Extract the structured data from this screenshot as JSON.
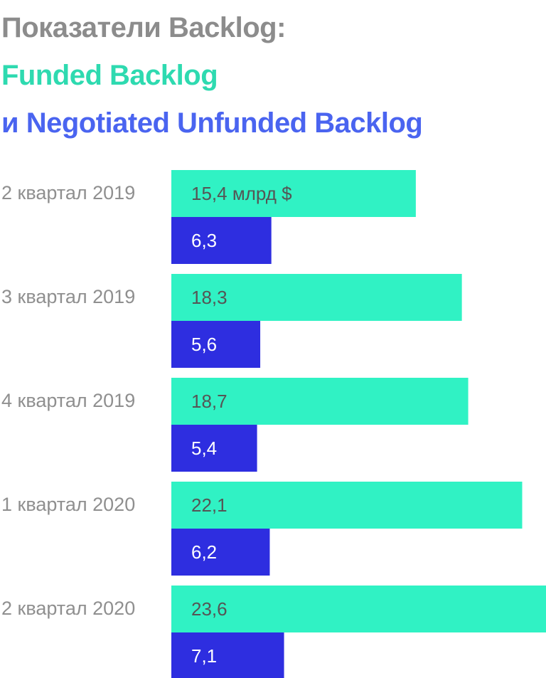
{
  "header": {
    "title_line1": "Показатели Backlog:",
    "title_line2": "Funded Backlog",
    "title_line3": "и Negotiated Unfunded Backlog"
  },
  "colors": {
    "title_gray": "#8c8c8c",
    "funded": "#30f2c4",
    "funded_title": "#2edab0",
    "unfunded": "#2e2ee0",
    "unfunded_title": "#4a64f0",
    "funded_label_text": "#555555",
    "unfunded_label_text": "#ffffff",
    "category_text": "#8f8f8f"
  },
  "chart_data": {
    "type": "bar",
    "orientation": "horizontal",
    "unit": "млрд $",
    "categories": [
      "2 квартал 2019",
      "3 квартал 2019",
      "4 квартал 2019",
      "1 квартал 2020",
      "2 квартал 2020"
    ],
    "series": [
      {
        "name": "Funded Backlog",
        "values": [
          15.4,
          18.3,
          18.7,
          22.1,
          23.6
        ],
        "labels": [
          "15,4 млрд $",
          "18,3",
          "18,7",
          "22,1",
          "23,6"
        ]
      },
      {
        "name": "Negotiated Unfunded Backlog",
        "values": [
          6.3,
          5.6,
          5.4,
          6.2,
          7.1
        ],
        "labels": [
          "6,3",
          "5,6",
          "5,4",
          "6,2",
          "7,1"
        ]
      }
    ],
    "xlim": [
      0,
      23.6
    ],
    "grid": false,
    "legend": "none"
  }
}
